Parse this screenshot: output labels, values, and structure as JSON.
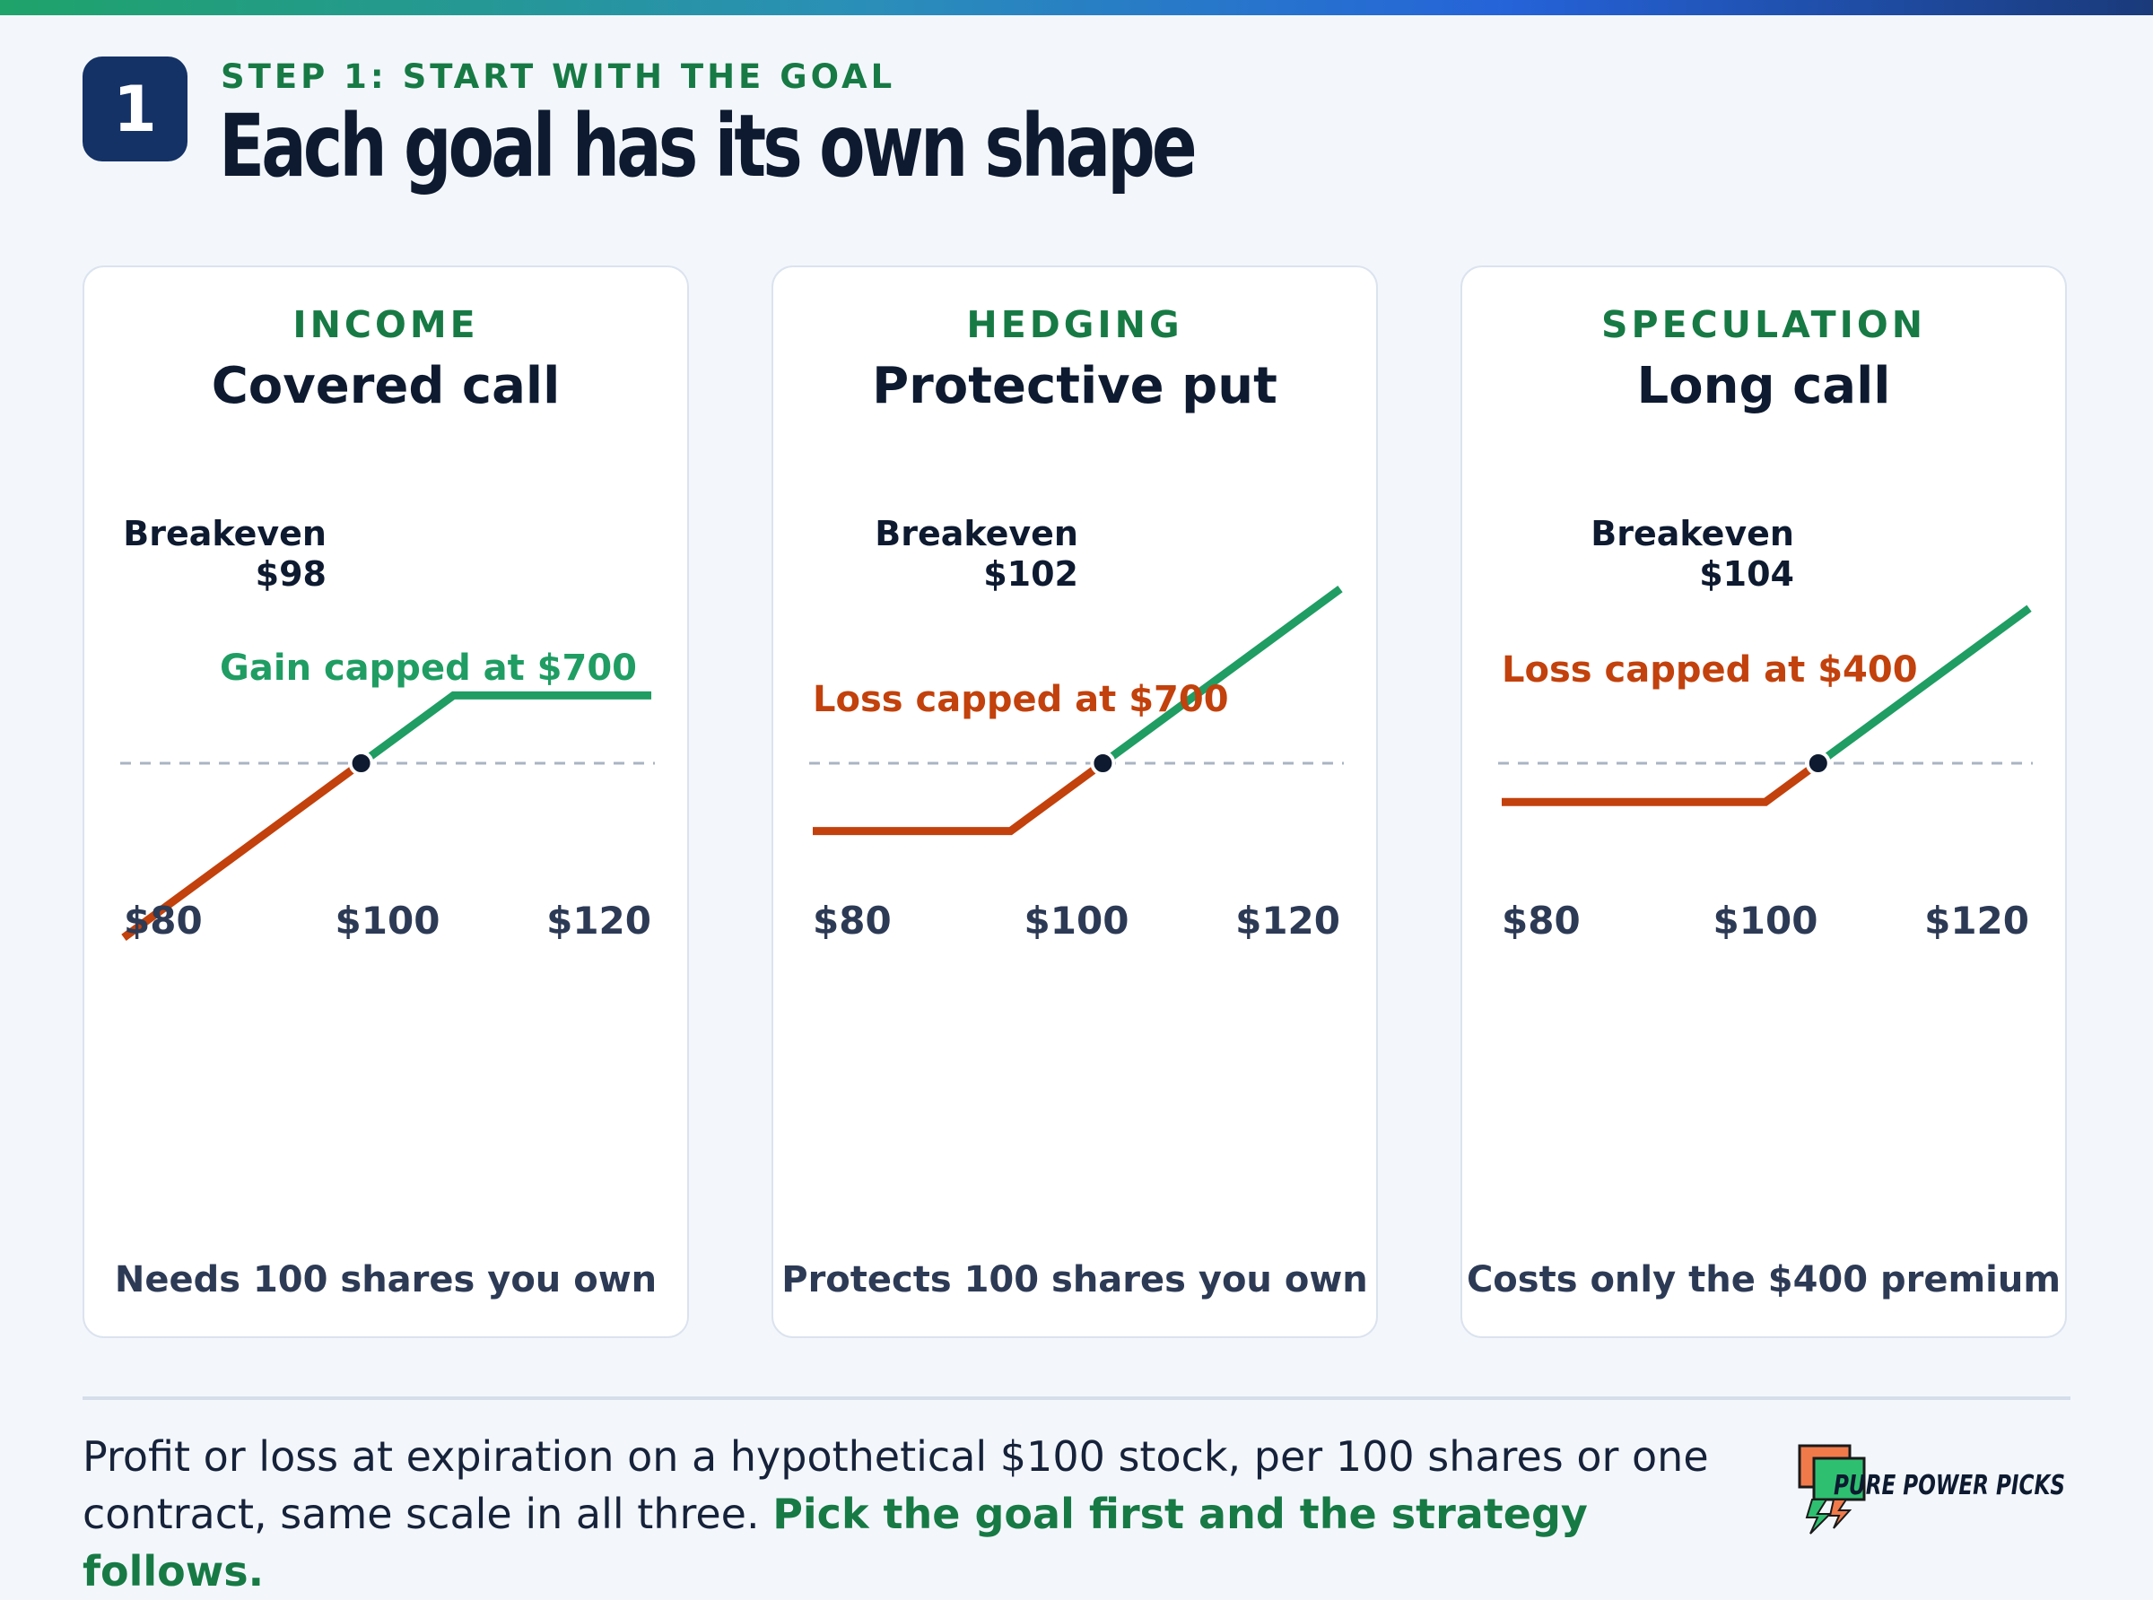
{
  "header": {
    "step_number": "1",
    "kicker": "STEP 1: START WITH THE GOAL",
    "title": "Each goal has its own shape"
  },
  "colors": {
    "gain": "#1f9d63",
    "loss": "#c2410c",
    "accent_green": "#177a45",
    "badge": "#143266",
    "breakeven_dot": "#0d1a30",
    "zero_line": "#aab4c3"
  },
  "cards": [
    {
      "goal": "INCOME",
      "strategy": "Covered call",
      "note": "Needs 100 shares you own",
      "breakeven_label": "Breakeven",
      "breakeven_value": "$98",
      "cap_label": "Gain capped at $700",
      "cap_type": "gain"
    },
    {
      "goal": "HEDGING",
      "strategy": "Protective put",
      "note": "Protects 100 shares you own",
      "breakeven_label": "Breakeven",
      "breakeven_value": "$102",
      "cap_label": "Loss capped at $700",
      "cap_type": "loss"
    },
    {
      "goal": "SPECULATION",
      "strategy": "Long call",
      "note": "Costs only the $400 premium",
      "breakeven_label": "Breakeven",
      "breakeven_value": "$104",
      "cap_label": "Loss capped at $400",
      "cap_type": "loss"
    }
  ],
  "chart_data": [
    {
      "type": "line",
      "x_ticks": [
        "$80",
        "$100",
        "$120"
      ],
      "xlim": [
        80,
        120
      ],
      "ylim": [
        -1800,
        1900
      ],
      "breakeven": 98,
      "points": [
        [
          80,
          -1800
        ],
        [
          98,
          0
        ],
        [
          105,
          700
        ],
        [
          120,
          700
        ]
      ]
    },
    {
      "type": "line",
      "x_ticks": [
        "$80",
        "$100",
        "$120"
      ],
      "xlim": [
        80,
        120
      ],
      "ylim": [
        -1800,
        1900
      ],
      "breakeven": 102,
      "points": [
        [
          80,
          -700
        ],
        [
          95,
          -700
        ],
        [
          102,
          0
        ],
        [
          120,
          1800
        ]
      ]
    },
    {
      "type": "line",
      "x_ticks": [
        "$80",
        "$100",
        "$120"
      ],
      "xlim": [
        80,
        120
      ],
      "ylim": [
        -1800,
        1900
      ],
      "breakeven": 104,
      "points": [
        [
          80,
          -400
        ],
        [
          100,
          -400
        ],
        [
          104,
          0
        ],
        [
          120,
          1600
        ]
      ]
    }
  ],
  "footer": {
    "caption": "Profit or loss at expiration on a hypothetical $100 stock, per 100 shares or one contract, same scale in all three. ",
    "caption_highlight": "Pick the goal first and the strategy follows.",
    "logo_text": "PURE POWER PICKS"
  }
}
